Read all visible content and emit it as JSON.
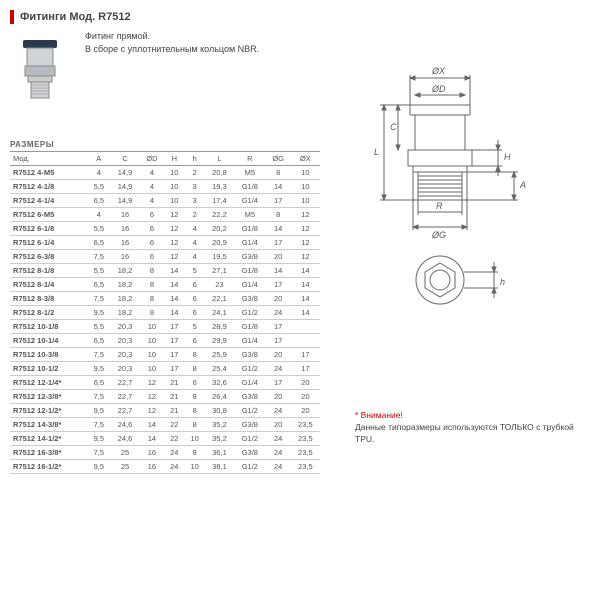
{
  "title": "Фитинги Мод. R7512",
  "desc_line1": "Фитинг прямой.",
  "desc_line2": "В сборе с уплотнительным кольцом NBR.",
  "section_label": "РАЗМЕРЫ",
  "columns": [
    "Мод.",
    "A",
    "C",
    "ØD",
    "H",
    "h",
    "L",
    "R",
    "ØG",
    "ØX"
  ],
  "rows": [
    [
      "R7512 4-M5",
      "4",
      "14,9",
      "4",
      "10",
      "2",
      "20,8",
      "M5",
      "8",
      "10"
    ],
    [
      "R7512 4-1/8",
      "5,5",
      "14,9",
      "4",
      "10",
      "3",
      "19,3",
      "G1/8",
      "14",
      "10"
    ],
    [
      "R7512 4-1/4",
      "6,5",
      "14,9",
      "4",
      "10",
      "3",
      "17,4",
      "G1/4",
      "17",
      "10"
    ],
    [
      "R7512 6-M5",
      "4",
      "16",
      "6",
      "12",
      "2",
      "22,2",
      "M5",
      "8",
      "12"
    ],
    [
      "R7512 6-1/8",
      "5,5",
      "16",
      "6",
      "12",
      "4",
      "20,2",
      "G1/8",
      "14",
      "12"
    ],
    [
      "R7512 6-1/4",
      "6,5",
      "16",
      "6",
      "12",
      "4",
      "20,9",
      "G1/4",
      "17",
      "12"
    ],
    [
      "R7512 6-3/8",
      "7,5",
      "16",
      "6",
      "12",
      "4",
      "19,5",
      "G3/8",
      "20",
      "12"
    ],
    [
      "R7512 8-1/8",
      "5,5",
      "18,2",
      "8",
      "14",
      "5",
      "27,1",
      "G1/8",
      "14",
      "14"
    ],
    [
      "R7512 8-1/4",
      "6,5",
      "18,2",
      "8",
      "14",
      "6",
      "23",
      "G1/4",
      "17",
      "14"
    ],
    [
      "R7512 8-3/8",
      "7,5",
      "18,2",
      "8",
      "14",
      "6",
      "22,1",
      "G3/8",
      "20",
      "14"
    ],
    [
      "R7512 8-1/2",
      "9,5",
      "18,2",
      "8",
      "14",
      "6",
      "24,1",
      "G1/2",
      "24",
      "14"
    ],
    [
      "R7512 10-1/8",
      "5,5",
      "20,3",
      "10",
      "17",
      "5",
      "28,9",
      "G1/8",
      "17",
      ""
    ],
    [
      "R7512 10-1/4",
      "6,5",
      "20,3",
      "10",
      "17",
      "6",
      "29,9",
      "G1/4",
      "17",
      ""
    ],
    [
      "R7512 10-3/8",
      "7,5",
      "20,3",
      "10",
      "17",
      "8",
      "25,9",
      "G3/8",
      "20",
      "17"
    ],
    [
      "R7512 10-1/2",
      "9,5",
      "20,3",
      "10",
      "17",
      "8",
      "25,4",
      "G1/2",
      "24",
      "17"
    ],
    [
      "R7512 12-1/4*",
      "6,5",
      "22,7",
      "12",
      "21",
      "6",
      "32,6",
      "G1/4",
      "17",
      "20"
    ],
    [
      "R7512 12-3/8*",
      "7,5",
      "22,7",
      "12",
      "21",
      "8",
      "26,4",
      "G3/8",
      "20",
      "20"
    ],
    [
      "R7512 12-1/2*",
      "9,5",
      "22,7",
      "12",
      "21",
      "8",
      "30,8",
      "G1/2",
      "24",
      "20"
    ],
    [
      "R7512 14-3/8*",
      "7,5",
      "24,6",
      "14",
      "22",
      "8",
      "35,2",
      "G3/8",
      "20",
      "23,5"
    ],
    [
      "R7512 14-1/2*",
      "9,5",
      "24,6",
      "14",
      "22",
      "10",
      "35,2",
      "G1/2",
      "24",
      "23,5"
    ],
    [
      "R7512 16-3/8*",
      "7,5",
      "25",
      "16",
      "24",
      "8",
      "36,1",
      "G3/8",
      "24",
      "23,5"
    ],
    [
      "R7512 16-1/2*",
      "9,5",
      "25",
      "16",
      "24",
      "10",
      "38,1",
      "G1/2",
      "24",
      "23,5"
    ]
  ],
  "note_warn": "* Внимание!",
  "note_text": "Данные типоразмеры используются ТОЛЬКО с трубкой TPU.",
  "diag": {
    "labels": {
      "ox": "ØX",
      "od": "ØD",
      "h_u": "H",
      "l": "L",
      "c": "C",
      "a": "A",
      "r": "R",
      "og": "ØG",
      "h_l": "h"
    },
    "color_line": "#666",
    "color_fill": "#ddd"
  }
}
